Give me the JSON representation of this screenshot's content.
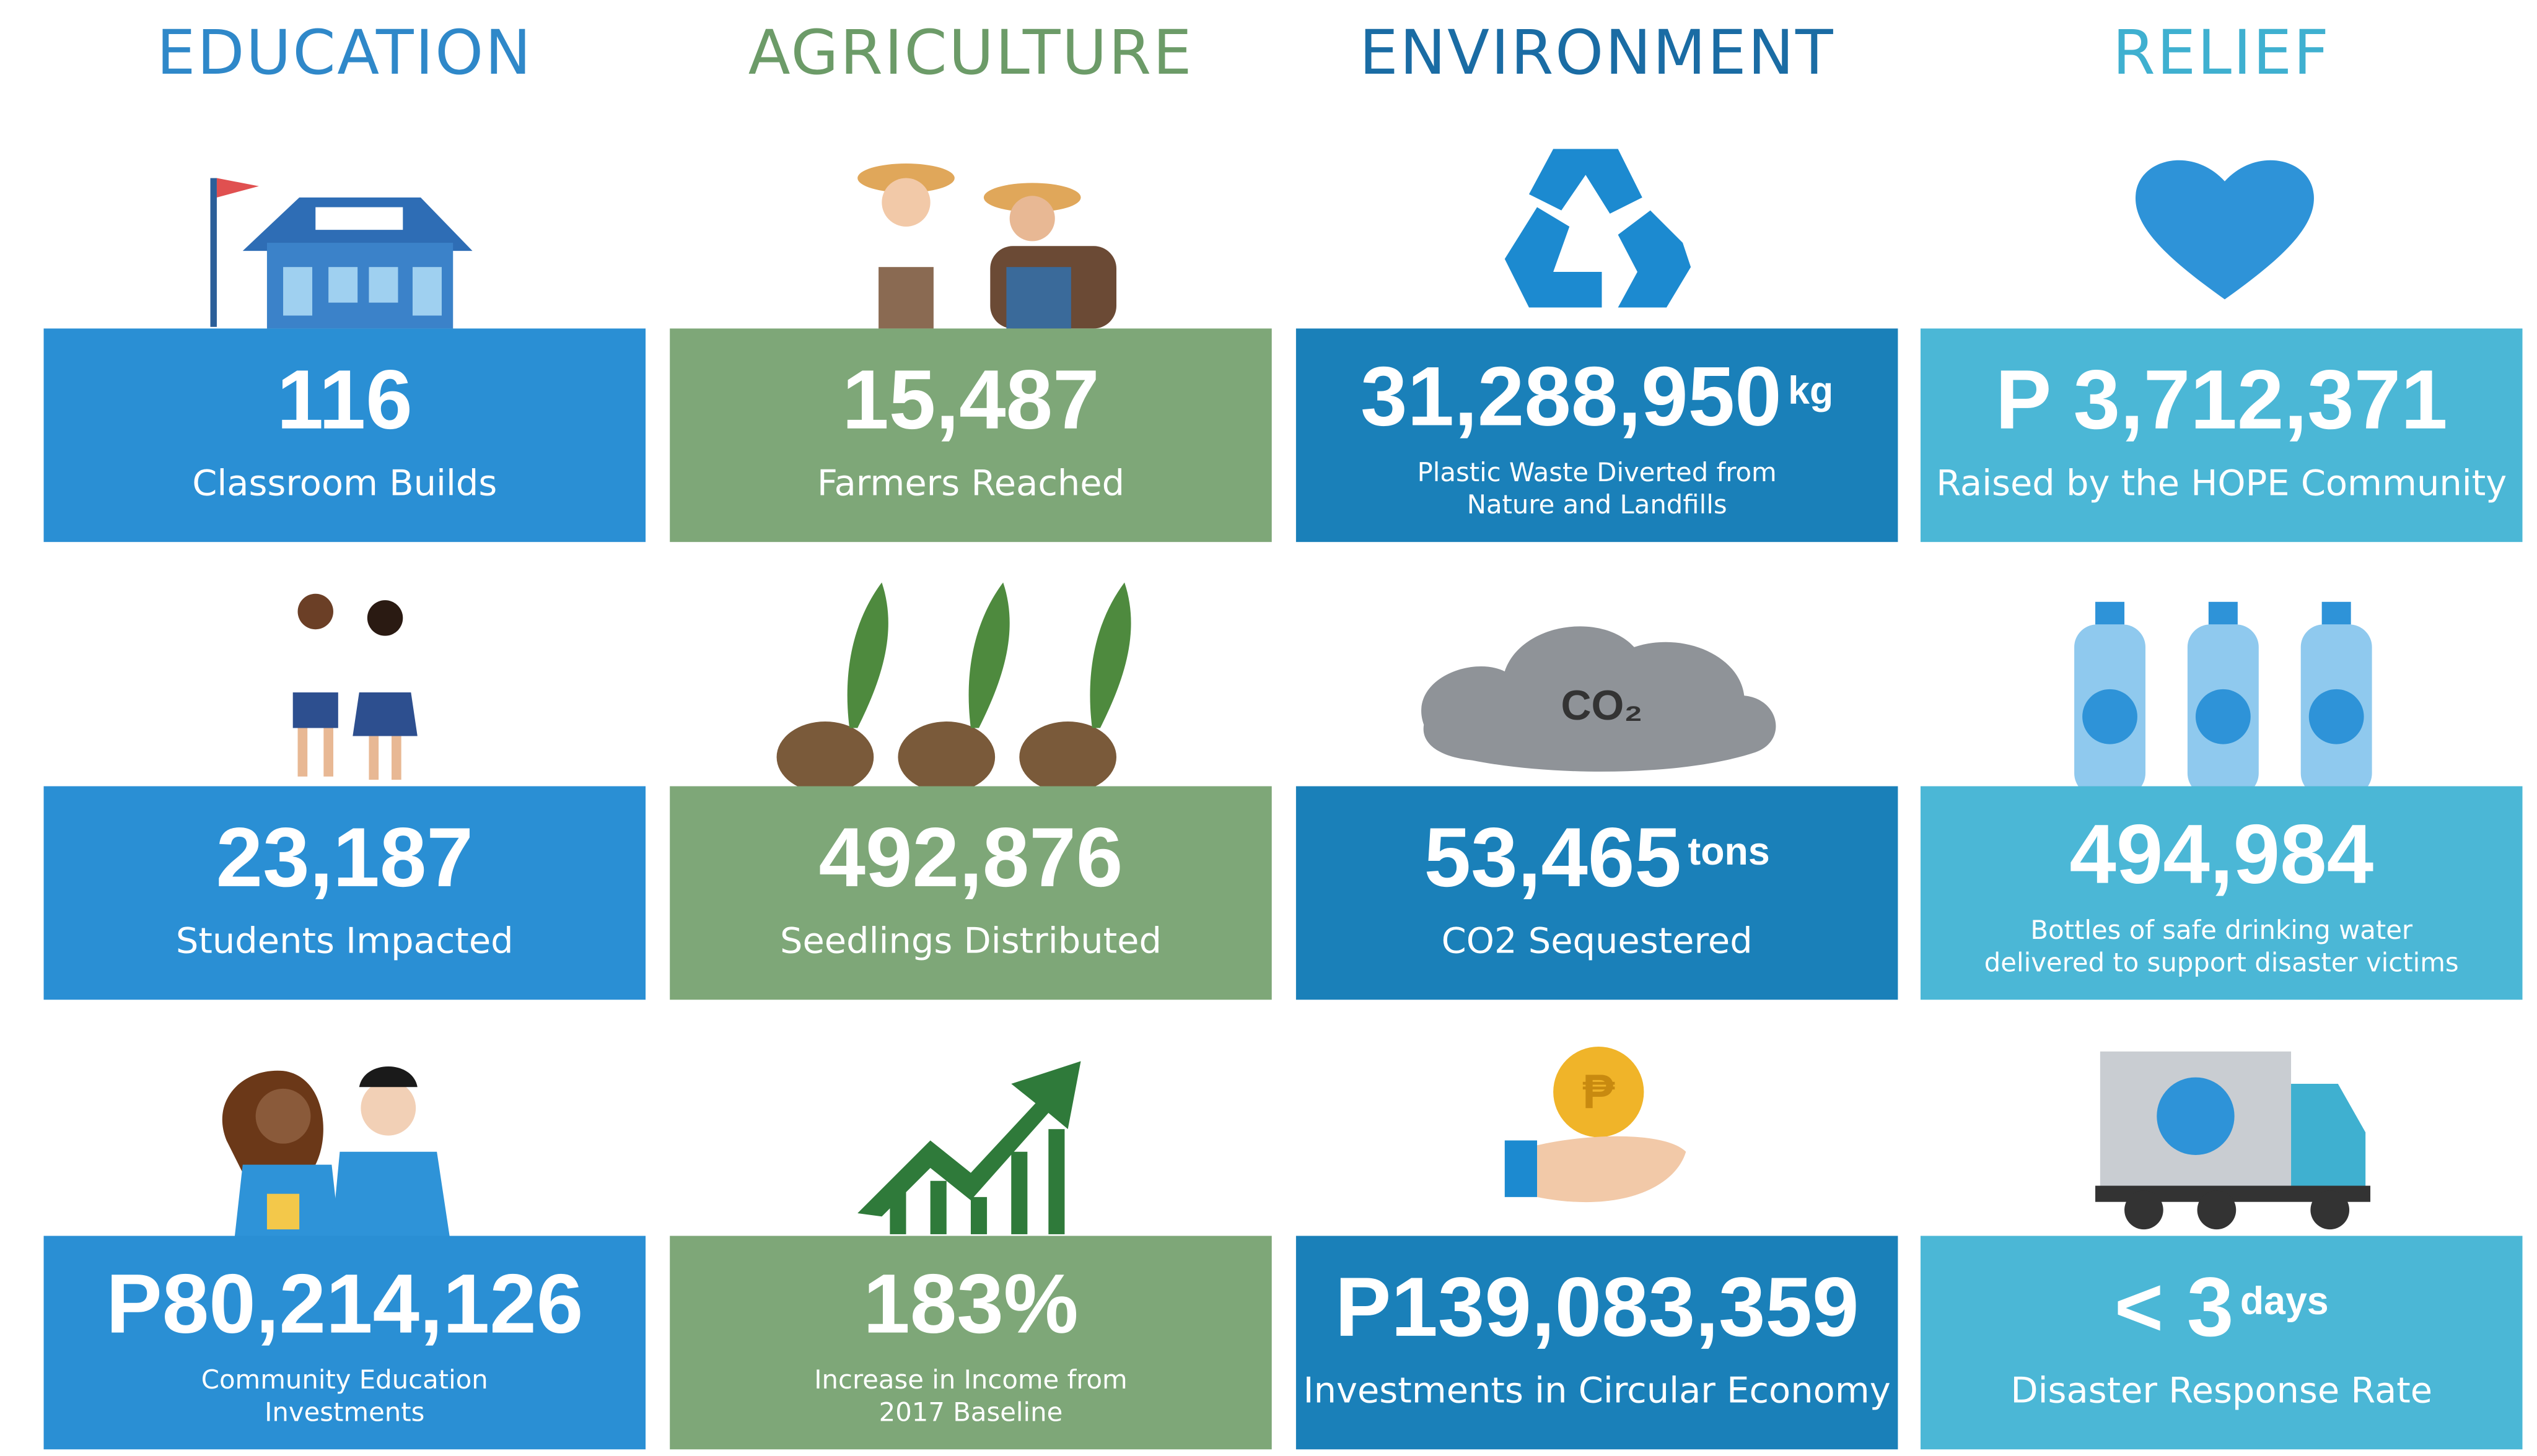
{
  "columns": [
    {
      "title": "EDUCATION",
      "title_color": "#2f88c9",
      "color": "#2a8fd4",
      "cards": [
        {
          "value": "116",
          "label_lines": [
            "Classroom Builds"
          ]
        },
        {
          "value": "23,187",
          "label_lines": [
            "Students Impacted"
          ]
        },
        {
          "value": "P80,214,126",
          "label_lines": [
            "Community Education",
            "Investments"
          ]
        }
      ]
    },
    {
      "title": "AGRICULTURE",
      "title_color": "#6c9b68",
      "color": "#7ea778",
      "cards": [
        {
          "value": "15,487",
          "label_lines": [
            "Farmers Reached"
          ]
        },
        {
          "value": "492,876",
          "label_lines": [
            "Seedlings Distributed"
          ]
        },
        {
          "value": "183%",
          "label_lines": [
            "Increase in Income from",
            "2017 Baseline"
          ]
        }
      ]
    },
    {
      "title": "ENVIRONMENT",
      "title_color": "#1a6ca4",
      "color": "#1a80b9",
      "cards": [
        {
          "value": "31,288,950",
          "unit": "kg",
          "label_lines": [
            "Plastic Waste Diverted from",
            "Nature and Landfills"
          ]
        },
        {
          "value": "53,465",
          "unit": "tons",
          "label_lines": [
            "CO2 Sequestered"
          ]
        },
        {
          "value": "P139,083,359",
          "label_lines": [
            "Investments in Circular Economy"
          ]
        }
      ]
    },
    {
      "title": "RELIEF",
      "title_color": "#3fb0d0",
      "color": "#4bb7d6",
      "cards": [
        {
          "value": "P 3,712,371",
          "label_lines": [
            "Raised by the HOPE Community"
          ]
        },
        {
          "value": "494,984",
          "label_lines": [
            "Bottles of safe drinking water",
            "delivered to support disaster victims"
          ]
        },
        {
          "value": "< 3",
          "unit": "days",
          "label_lines": [
            "Disaster Response Rate"
          ]
        }
      ]
    }
  ]
}
